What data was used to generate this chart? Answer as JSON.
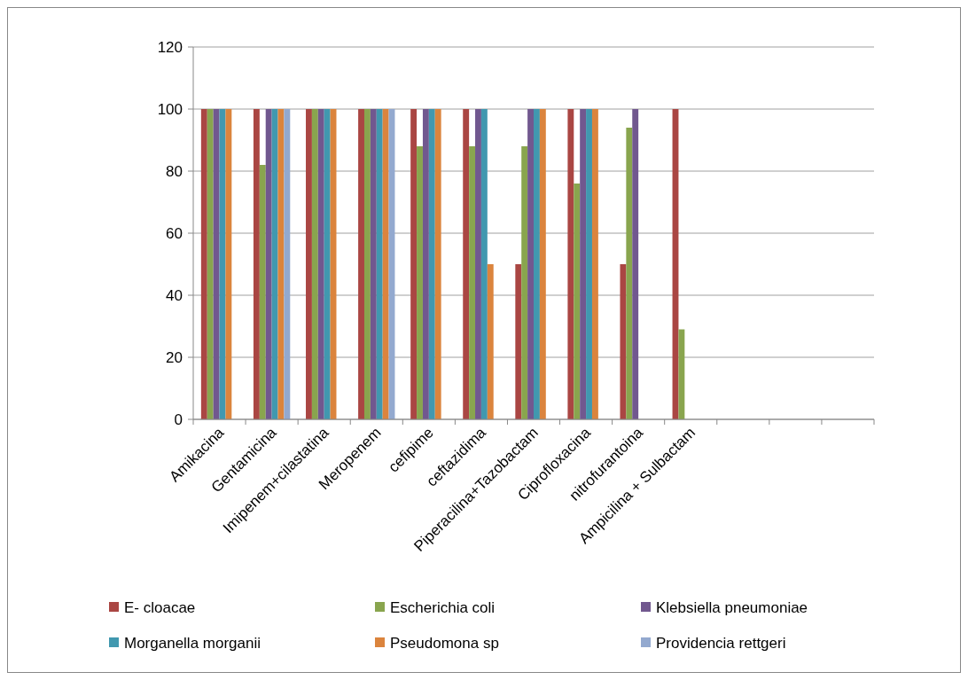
{
  "chart_data": {
    "type": "bar",
    "categories": [
      "Amikacina",
      "Gentamicina",
      "Imipenem+cilastatina",
      "Meropenem",
      "cefipime",
      "ceftazidima",
      "Piperacilina+Tazobactam",
      "Ciprofloxacina",
      "nitrofurantoina",
      "Ampicilina + Sulbactam",
      null,
      null,
      null
    ],
    "series": [
      {
        "name": "E- cloacae",
        "color": "#aa4643",
        "values": [
          100,
          100,
          100,
          100,
          100,
          100,
          50,
          100,
          50,
          100,
          null,
          null,
          null
        ]
      },
      {
        "name": "Escherichia coli",
        "color": "#89a54e",
        "values": [
          100,
          82,
          100,
          100,
          88,
          88,
          88,
          76,
          94,
          29,
          null,
          null,
          null
        ]
      },
      {
        "name": "Klebsiella pneumoniae",
        "color": "#71588f",
        "values": [
          100,
          100,
          100,
          100,
          100,
          100,
          100,
          100,
          100,
          null,
          null,
          null,
          null
        ]
      },
      {
        "name": "Morganella morganii",
        "color": "#4198af",
        "values": [
          100,
          100,
          100,
          100,
          100,
          100,
          100,
          100,
          null,
          null,
          null,
          null,
          null
        ]
      },
      {
        "name": "Pseudomona sp",
        "color": "#db843d",
        "values": [
          100,
          100,
          100,
          100,
          100,
          50,
          100,
          100,
          null,
          null,
          null,
          null,
          null
        ]
      },
      {
        "name": "Providencia rettgeri",
        "color": "#93a9cf",
        "values": [
          null,
          100,
          null,
          100,
          null,
          null,
          null,
          null,
          null,
          null,
          null,
          null,
          null
        ]
      }
    ],
    "ylim": [
      0,
      120
    ],
    "yticks": [
      0,
      20,
      40,
      60,
      80,
      100,
      120
    ],
    "grid": "y",
    "legend": "bottom"
  }
}
